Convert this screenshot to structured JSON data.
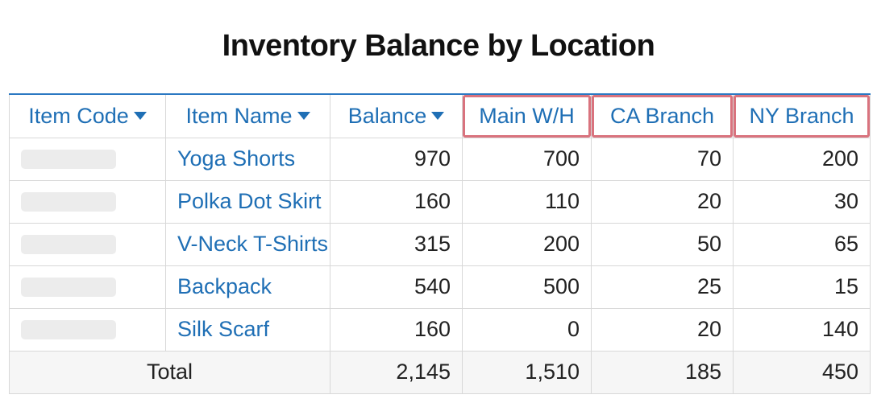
{
  "title": "Inventory Balance by Location",
  "columns": {
    "item_code": "Item Code",
    "item_name": "Item Name",
    "balance": "Balance",
    "main": "Main W/H",
    "ca": "CA Branch",
    "ny": "NY Branch"
  },
  "rows": [
    {
      "code": "",
      "name": "Yoga Shorts",
      "balance": "970",
      "main": "700",
      "ca": "70",
      "ny": "200"
    },
    {
      "code": "",
      "name": "Polka Dot Skirt",
      "balance": "160",
      "main": "110",
      "ca": "20",
      "ny": "30"
    },
    {
      "code": "",
      "name": "V-Neck T-Shirts",
      "balance": "315",
      "main": "200",
      "ca": "50",
      "ny": "65"
    },
    {
      "code": "",
      "name": "Backpack",
      "balance": "540",
      "main": "500",
      "ca": "25",
      "ny": "15"
    },
    {
      "code": "",
      "name": "Silk Scarf",
      "balance": "160",
      "main": "0",
      "ca": "20",
      "ny": "140"
    }
  ],
  "totals": {
    "label": "Total",
    "balance": "2,145",
    "main": "1,510",
    "ca": "185",
    "ny": "450"
  },
  "colors": {
    "accent": "#1f6fb5",
    "header_rule": "#2b78c2",
    "highlight": "#d9737e",
    "grid": "#d8d8d8",
    "placeholder": "#ececec",
    "total_bg": "#f6f6f6"
  }
}
